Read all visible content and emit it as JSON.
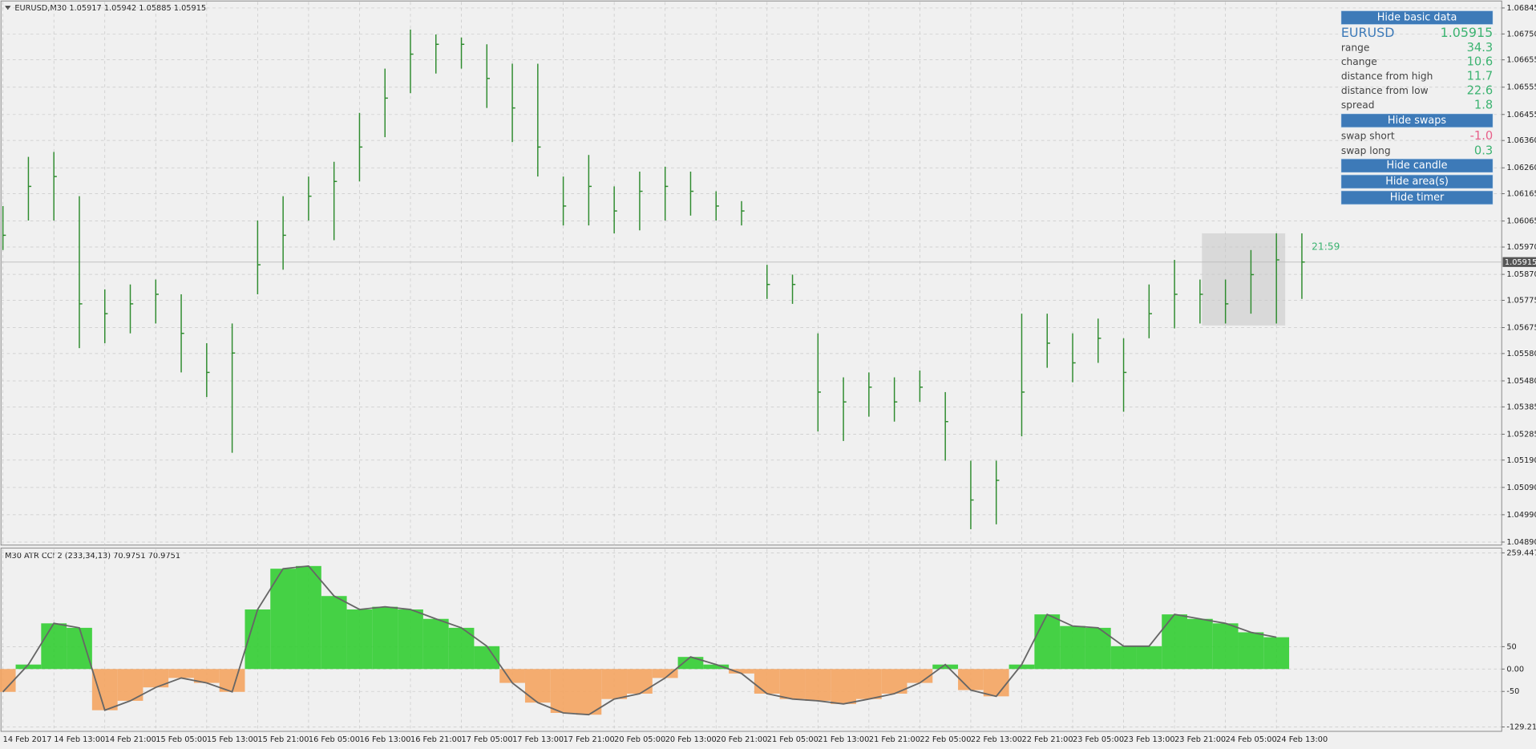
{
  "chart_data": [
    {
      "type": "ohlc",
      "title": "EURUSD,M30 1.05917 1.05942 1.05885 1.05915",
      "color": "#2e8b2e",
      "categories": [
        "14 Feb 2017",
        null,
        "14 Feb 13:00",
        null,
        "14 Feb 21:00",
        null,
        "15 Feb 05:00",
        null,
        "15 Feb 13:00",
        null,
        "15 Feb 21:00",
        null,
        "16 Feb 05:00",
        null,
        "16 Feb 13:00",
        null,
        "16 Feb 21:00",
        null,
        "17 Feb 05:00",
        null,
        "17 Feb 13:00",
        null,
        "17 Feb 21:00",
        null,
        "20 Feb 05:00",
        null,
        "20 Feb 13:00",
        null,
        "20 Feb 21:00",
        null,
        "21 Feb 05:00",
        null,
        "21 Feb 13:00",
        null,
        "21 Feb 21:00",
        null,
        "22 Feb 05:00",
        null,
        "22 Feb 13:00",
        null,
        "22 Feb 21:00",
        null,
        "23 Feb 05:00",
        null,
        "23 Feb 13:00",
        null,
        "23 Feb 21:00",
        null,
        "24 Feb 05:00",
        null,
        "24 Feb 13:00",
        null
      ],
      "high": [
        1.0612,
        1.063,
        1.06318,
        1.06156,
        1.05815,
        1.05833,
        1.05851,
        1.05797,
        1.05618,
        1.0569,
        1.06067,
        1.06156,
        1.06228,
        1.06282,
        1.06461,
        1.06623,
        1.06766,
        1.06748,
        1.06737,
        1.06712,
        1.06641,
        1.06641,
        1.06228,
        1.06307,
        1.06192,
        1.06246,
        1.06264,
        1.06246,
        1.06174,
        1.06138,
        1.05905,
        1.05869,
        1.05654,
        1.05493,
        1.05511,
        1.05493,
        1.05518,
        1.05439,
        1.05188,
        1.05188,
        1.05726,
        1.05726,
        1.05654,
        1.05708,
        1.05636,
        1.05833,
        1.05923,
        1.05851,
        1.05851,
        1.05959,
        1.0602,
        1.0602
      ],
      "low": [
        1.05959,
        1.06067,
        1.06067,
        1.056,
        1.05618,
        1.05654,
        1.0569,
        1.05511,
        1.05421,
        1.05217,
        1.05797,
        1.05887,
        1.06067,
        1.05995,
        1.0621,
        1.06372,
        1.06533,
        1.06605,
        1.06623,
        1.06479,
        1.06354,
        1.06228,
        1.06049,
        1.06049,
        1.0602,
        1.06031,
        1.06067,
        1.06085,
        1.06067,
        1.06049,
        1.0578,
        1.05762,
        1.05295,
        1.0526,
        1.05349,
        1.05331,
        1.05403,
        1.05188,
        1.04937,
        1.04955,
        1.05277,
        1.05528,
        1.05475,
        1.05546,
        1.05367,
        1.05636,
        1.05672,
        1.0569,
        1.0569,
        1.05726,
        1.0569,
        1.0578
      ],
      "close": [
        1.06013,
        1.06192,
        1.06228,
        1.05762,
        1.05726,
        1.05762,
        1.05797,
        1.05654,
        1.05511,
        1.05582,
        1.05905,
        1.06013,
        1.06156,
        1.0621,
        1.06336,
        1.06515,
        1.06676,
        1.06712,
        1.06712,
        1.06587,
        1.06479,
        1.06336,
        1.0612,
        1.06192,
        1.06102,
        1.06174,
        1.06192,
        1.06174,
        1.0612,
        1.06102,
        1.05833,
        1.05833,
        1.05439,
        1.05403,
        1.05457,
        1.05403,
        1.05457,
        1.05331,
        1.05044,
        1.05116,
        1.05439,
        1.05618,
        1.05546,
        1.05636,
        1.05511,
        1.05726,
        1.05797,
        1.05797,
        1.05762,
        1.05869,
        1.05923,
        1.05915
      ],
      "current_price": 1.05915,
      "timer": "21:59",
      "ylim": [
        1.04879,
        1.06867
      ],
      "yticks": [
        {
          "value": 1.06845,
          "label": "1.06845"
        },
        {
          "value": 1.0675,
          "label": "1.06750"
        },
        {
          "value": 1.06655,
          "label": "1.06655"
        },
        {
          "value": 1.06555,
          "label": "1.06555"
        },
        {
          "value": 1.06455,
          "label": "1.06455"
        },
        {
          "value": 1.0636,
          "label": "1.06360"
        },
        {
          "value": 1.0626,
          "label": "1.06260"
        },
        {
          "value": 1.06165,
          "label": "1.06165"
        },
        {
          "value": 1.06065,
          "label": "1.06065"
        },
        {
          "value": 1.0597,
          "label": "1.05970"
        },
        {
          "value": 1.0587,
          "label": "1.05870"
        },
        {
          "value": 1.05775,
          "label": "1.05775"
        },
        {
          "value": 1.05675,
          "label": "1.05675"
        },
        {
          "value": 1.0558,
          "label": "1.05580"
        },
        {
          "value": 1.0548,
          "label": "1.05480"
        },
        {
          "value": 1.05385,
          "label": "1.05385"
        },
        {
          "value": 1.05285,
          "label": "1.05285"
        },
        {
          "value": 1.0519,
          "label": "1.05190"
        },
        {
          "value": 1.0509,
          "label": "1.05090"
        },
        {
          "value": 1.0499,
          "label": "1.04990"
        },
        {
          "value": 1.0489,
          "label": "1.04890"
        }
      ],
      "grid": true
    },
    {
      "type": "histogram-line",
      "title": "M30 ATR CCI 2 (233,34,13) 70.9751 70.9751",
      "values": [
        -51,
        10,
        102,
        92,
        -92,
        -71,
        -41,
        -20,
        -31,
        -51,
        133,
        224,
        230,
        163,
        133,
        139,
        133,
        112,
        92,
        51,
        -31,
        -75,
        -98,
        -102,
        -67,
        -55,
        -20,
        27,
        10,
        -10,
        -55,
        -67,
        -71,
        -78,
        -67,
        -55,
        -31,
        10,
        -47,
        -61,
        10,
        122,
        96,
        92,
        51,
        51,
        122,
        112,
        102,
        82,
        71,
        null
      ],
      "line_color": "#666666",
      "positive_color": "#32cd32",
      "negative_color": "#f4a460",
      "ylim": [
        -137,
        268
      ],
      "yticks": [
        259.4476,
        50,
        {
          "value": 0,
          "label": "0.00"
        },
        -50,
        -129.215
      ],
      "grid": true
    }
  ],
  "panel": {
    "basic_button": "Hide basic data",
    "symbol": "EURUSD",
    "price": "1.05915",
    "rows": [
      [
        "range",
        "34.3"
      ],
      [
        "change",
        "10.6"
      ],
      [
        "distance from high",
        "11.7"
      ],
      [
        "distance from low",
        "22.6"
      ],
      [
        "spread",
        "1.8"
      ]
    ],
    "swaps_button": "Hide swaps",
    "swap_rows": [
      [
        "swap short",
        "-1.0"
      ],
      [
        "swap long",
        "0.3"
      ]
    ],
    "buttons": [
      "Hide candle",
      "Hide area(s)",
      "Hide timer"
    ]
  }
}
